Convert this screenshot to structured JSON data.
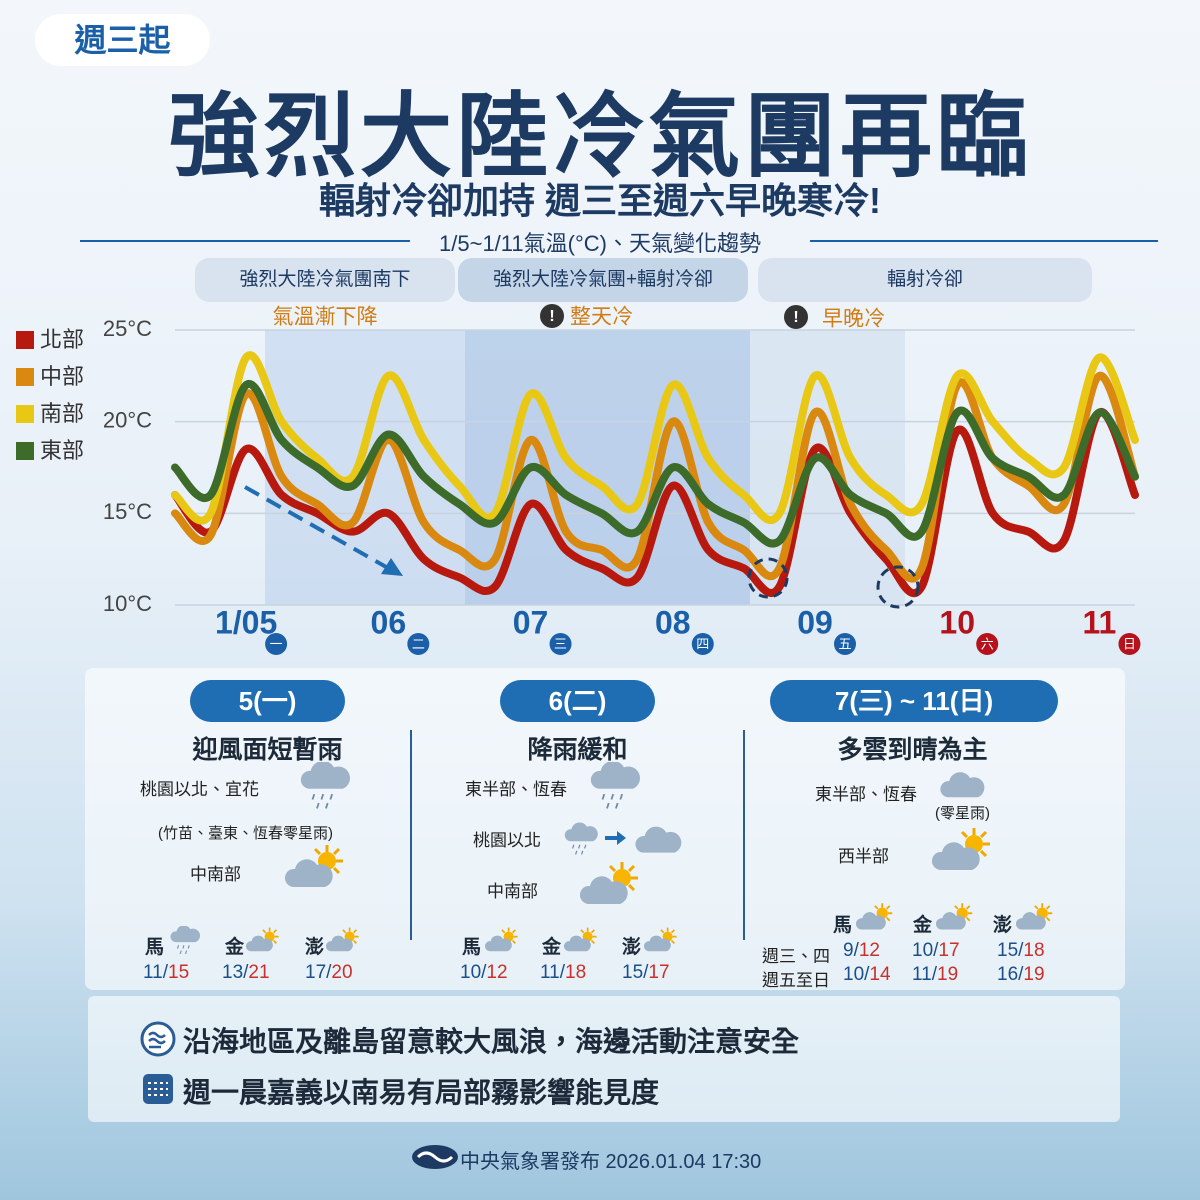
{
  "header": {
    "tag": "週三起",
    "title": "強烈大陸冷氣團再臨",
    "subtitle": "輻射冷卻加持 週三至週六早晚寒冷!",
    "chart_caption": "1/5~1/11氣溫(°C)、天氣變化趨勢"
  },
  "phases": [
    {
      "label": "強烈大陸冷氣團南下",
      "note": "氣溫漸下降"
    },
    {
      "label": "強烈大陸冷氣團+輻射冷卻",
      "note": "整天冷"
    },
    {
      "label": "輻射冷卻",
      "note": "早晚冷"
    }
  ],
  "chart_data": {
    "type": "line",
    "categories": [
      null,
      null,
      "1/05",
      null,
      null,
      null,
      "06",
      null,
      null,
      null,
      "07",
      null,
      null,
      null,
      "08",
      null,
      null,
      null,
      "09",
      null,
      null,
      null,
      "10",
      null,
      null,
      null,
      "11",
      null
    ],
    "weekday_labels": [
      null,
      null,
      "一",
      null,
      null,
      null,
      "二",
      null,
      null,
      null,
      "三",
      null,
      null,
      null,
      "四",
      null,
      null,
      null,
      "五",
      null,
      null,
      null,
      "六",
      null,
      null,
      null,
      "日",
      null
    ],
    "tick_label_colors": [
      null,
      null,
      "#1a5fa8",
      null,
      null,
      null,
      "#1a5fa8",
      null,
      null,
      null,
      "#1a5fa8",
      null,
      null,
      null,
      "#1a5fa8",
      null,
      null,
      null,
      "#1a5fa8",
      null,
      null,
      null,
      "#b5121b",
      null,
      null,
      null,
      "#b5121b",
      null
    ],
    "ylim": [
      10,
      25
    ],
    "yticks": [
      {
        "value": 10,
        "label": "10°C"
      },
      {
        "value": 15,
        "label": "15°C"
      },
      {
        "value": 20,
        "label": "20°C"
      },
      {
        "value": 25,
        "label": "25°C"
      }
    ],
    "grid": true,
    "series": [
      {
        "name": "北部",
        "color": "#b8190f",
        "values": [
          16,
          14,
          18.5,
          16,
          15,
          14,
          15,
          12.5,
          11.5,
          11,
          15.5,
          13,
          12,
          11.5,
          16.5,
          13,
          12,
          11,
          18.5,
          15,
          12.5,
          11,
          19.5,
          15,
          14,
          13.5,
          20.5,
          16
        ]
      },
      {
        "name": "中部",
        "color": "#d9890f",
        "values": [
          15,
          13.8,
          21.5,
          17,
          15.5,
          14.5,
          19,
          14.5,
          13,
          12.5,
          19,
          14,
          13,
          12.5,
          20,
          14.5,
          13,
          12,
          20.5,
          15.5,
          13,
          12,
          22,
          18,
          16.5,
          15.5,
          22.5,
          17
        ]
      },
      {
        "name": "南部",
        "color": "#e8c815",
        "values": [
          16,
          15,
          23.5,
          20,
          18,
          17,
          22.5,
          19,
          16.5,
          15,
          21.5,
          18,
          16.5,
          15.5,
          22,
          18,
          16,
          15,
          22.5,
          18,
          16,
          15.5,
          22.5,
          20,
          18,
          17.5,
          23.5,
          19
        ]
      },
      {
        "name": "東部",
        "color": "#3d6b2a",
        "values": [
          17.5,
          16,
          22,
          19,
          17.5,
          16.5,
          19.3,
          17,
          15.5,
          14.5,
          17.5,
          16,
          15,
          14,
          17.5,
          15.5,
          14.5,
          13.5,
          18,
          16,
          15,
          14,
          20.5,
          18,
          17,
          16,
          20.5,
          17
        ]
      }
    ]
  },
  "forecast": {
    "panels": [
      {
        "date": "5(一)",
        "headline": "迎風面短暫雨",
        "lines": [
          "桃園以北、宜花",
          "(竹苗、臺東、恆春零星雨)",
          "中南部"
        ],
        "islands": [
          {
            "name": "馬",
            "low": 11,
            "high": 15
          },
          {
            "name": "金",
            "low": 13,
            "high": 21
          },
          {
            "name": "澎",
            "low": 17,
            "high": 20
          }
        ]
      },
      {
        "date": "6(二)",
        "headline": "降雨緩和",
        "lines": [
          "東半部、恆春",
          "桃園以北",
          "中南部"
        ],
        "islands": [
          {
            "name": "馬",
            "low": 10,
            "high": 12
          },
          {
            "name": "金",
            "low": 11,
            "high": 18
          },
          {
            "name": "澎",
            "low": 15,
            "high": 17
          }
        ]
      },
      {
        "date": "7(三) ~ 11(日)",
        "headline": "多雲到晴為主",
        "lines": [
          "東半部、恆春",
          "(零星雨)",
          "西半部"
        ],
        "islands": [
          {
            "name": "馬"
          },
          {
            "name": "金"
          },
          {
            "name": "澎"
          }
        ],
        "rows": [
          {
            "label": "週三、四",
            "temps": [
              {
                "low": 9,
                "high": 12
              },
              {
                "low": 10,
                "high": 17
              },
              {
                "low": 15,
                "high": 18
              }
            ]
          },
          {
            "label": "週五至日",
            "temps": [
              {
                "low": 10,
                "high": 14
              },
              {
                "low": 11,
                "high": 19
              },
              {
                "low": 16,
                "high": 19
              }
            ]
          }
        ]
      }
    ]
  },
  "notices": [
    "沿海地區及離島留意較大風浪，海邊活動注意安全",
    "週一晨嘉義以南易有局部霧影響能見度"
  ],
  "footer": "中央氣象署發布 2026.01.04 17:30"
}
